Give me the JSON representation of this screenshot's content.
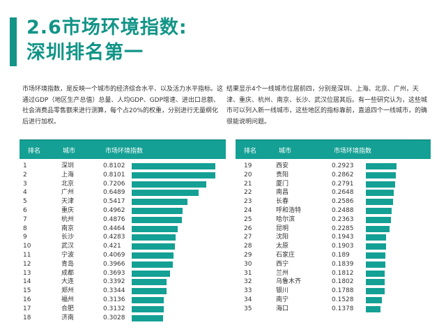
{
  "title_line1": "2.6市场环境指数:",
  "title_line2": "深圳排名第一",
  "para_left": "市场环境指数，是反映一个城市的经济综合水平、以及活力水平指标。这通过GDP（地区生产总值）总量、人均GDP、GDP增速、进出口总额、社会消费品零售额来进行测算，每个占20%的权重，分别进行无量纲化后进行加权。",
  "para_right": "结果显示4个一线城市位居前四，分别是深圳、上海、北京、广州，天津、重庆、杭州、南京、长沙、武汉位居其后。有一些研究认为，这些城市可以列入新一线城市，这些地区的指标靠前，直追四个一线城市，的确很能说明问题。",
  "colors": {
    "accent": "#129487",
    "bar": "#14a094"
  },
  "headers": {
    "rank": "排名",
    "city": "城市",
    "index": "市场环境指数"
  },
  "left_rows": [
    {
      "rank": "1",
      "city": "深圳",
      "value": "0.8102"
    },
    {
      "rank": "2",
      "city": "上海",
      "value": "0.8101"
    },
    {
      "rank": "3",
      "city": "北京",
      "value": "0.7206"
    },
    {
      "rank": "4",
      "city": "广州",
      "value": "0.6489"
    },
    {
      "rank": "5",
      "city": "天津",
      "value": "0.5417"
    },
    {
      "rank": "6",
      "city": "重庆",
      "value": "0.4962"
    },
    {
      "rank": "7",
      "city": "杭州",
      "value": "0.4876"
    },
    {
      "rank": "8",
      "city": "南京",
      "value": "0.4464"
    },
    {
      "rank": "9",
      "city": "长沙",
      "value": "0.4283"
    },
    {
      "rank": "10",
      "city": "武汉",
      "value": "0.421"
    },
    {
      "rank": "11",
      "city": "宁波",
      "value": "0.4069"
    },
    {
      "rank": "12",
      "city": "青岛",
      "value": "0.3966"
    },
    {
      "rank": "13",
      "city": "成都",
      "value": "0.3693"
    },
    {
      "rank": "14",
      "city": "大连",
      "value": "0.3392"
    },
    {
      "rank": "15",
      "city": "郑州",
      "value": "0.3344"
    },
    {
      "rank": "16",
      "city": "福州",
      "value": "0.3136"
    },
    {
      "rank": "17",
      "city": "合肥",
      "value": "0.3132"
    },
    {
      "rank": "18",
      "city": "济南",
      "value": "0.3028"
    }
  ],
  "right_rows": [
    {
      "rank": "19",
      "city": "西安",
      "value": "0.2923"
    },
    {
      "rank": "20",
      "city": "贵阳",
      "value": "0.2862"
    },
    {
      "rank": "21",
      "city": "厦门",
      "value": "0.2791"
    },
    {
      "rank": "22",
      "city": "南昌",
      "value": "0.2648"
    },
    {
      "rank": "23",
      "city": "长春",
      "value": "0.2586"
    },
    {
      "rank": "24",
      "city": "呼和浩特",
      "value": "0.2488"
    },
    {
      "rank": "25",
      "city": "哈尔滨",
      "value": "0.2363"
    },
    {
      "rank": "26",
      "city": "昆明",
      "value": "0.2285"
    },
    {
      "rank": "27",
      "city": "沈阳",
      "value": "0.1943"
    },
    {
      "rank": "28",
      "city": "太原",
      "value": "0.1903"
    },
    {
      "rank": "29",
      "city": "石家庄",
      "value": "0.189"
    },
    {
      "rank": "30",
      "city": "西宁",
      "value": "0.1839"
    },
    {
      "rank": "31",
      "city": "兰州",
      "value": "0.1812"
    },
    {
      "rank": "32",
      "city": "乌鲁木齐",
      "value": "0.1802"
    },
    {
      "rank": "33",
      "city": "银川",
      "value": "0.1788"
    },
    {
      "rank": "34",
      "city": "南宁",
      "value": "0.1528"
    },
    {
      "rank": "35",
      "city": "海口",
      "value": "0.1378"
    }
  ]
}
